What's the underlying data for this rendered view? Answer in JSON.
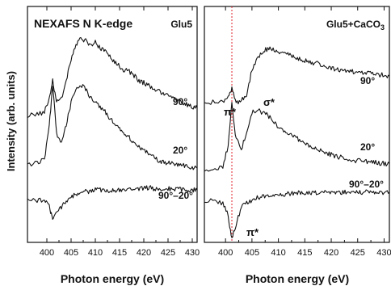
{
  "figure": {
    "ylabel": "Intensity (arb. units)"
  },
  "chart_data": [
    {
      "type": "line",
      "panel": "left",
      "title": "NEXAFS N K-edge",
      "tag": "Glu5",
      "xlabel": "Photon energy (eV)",
      "ylabel": "Intensity (arb. units)",
      "xlim": [
        396,
        431
      ],
      "xticks": [
        400,
        405,
        410,
        415,
        420,
        425,
        430
      ],
      "yticks_labeled": false,
      "series": [
        {
          "name": "90°",
          "x": [
            396,
            398,
            399.5,
            400.5,
            401.2,
            402,
            403,
            404,
            405,
            406,
            407,
            408,
            409,
            410,
            411,
            412,
            413,
            414,
            415,
            416,
            417,
            418,
            419,
            420,
            421,
            422,
            423,
            424,
            425,
            426,
            427,
            428,
            429,
            430,
            431
          ],
          "y": [
            1.05,
            1.07,
            1.1,
            1.28,
            1.55,
            1.25,
            1.3,
            1.55,
            1.85,
            2.05,
            2.15,
            2.12,
            2.05,
            2.1,
            2.02,
            1.98,
            1.9,
            1.82,
            1.75,
            1.7,
            1.68,
            1.62,
            1.55,
            1.52,
            1.48,
            1.44,
            1.4,
            1.36,
            1.33,
            1.3,
            1.27,
            1.24,
            1.21,
            1.18,
            1.16
          ]
        },
        {
          "name": "20°",
          "x": [
            396,
            398,
            399.5,
            400.5,
            401.2,
            402,
            403,
            404,
            405,
            406,
            407,
            408,
            409,
            410,
            411,
            412,
            413,
            414,
            415,
            416,
            417,
            418,
            419,
            420,
            421,
            422,
            423,
            424,
            425,
            426,
            427,
            428,
            429,
            430,
            431
          ],
          "y": [
            0.1,
            0.12,
            0.15,
            0.55,
            1.0,
            0.45,
            0.35,
            0.55,
            0.8,
            0.95,
            1.0,
            0.95,
            0.85,
            0.8,
            0.75,
            0.7,
            0.62,
            0.55,
            0.5,
            0.45,
            0.4,
            0.35,
            0.3,
            0.26,
            0.22,
            0.18,
            0.15,
            0.13,
            0.12,
            0.11,
            0.1,
            0.09,
            0.08,
            0.07,
            0.06
          ]
        },
        {
          "name": "90°–20°",
          "x": [
            396,
            398,
            399.5,
            400.5,
            401.2,
            402,
            403,
            404,
            405,
            406,
            407,
            408,
            409,
            410,
            411,
            412,
            413,
            414,
            415,
            416,
            417,
            418,
            419,
            420,
            421,
            422,
            423,
            424,
            425,
            426,
            427,
            428,
            429,
            430,
            431
          ],
          "y": [
            -0.95,
            -0.95,
            -0.95,
            -1.0,
            -1.1,
            -1.05,
            -1.0,
            -0.95,
            -0.92,
            -0.9,
            -0.9,
            -0.88,
            -0.88,
            -0.87,
            -0.87,
            -0.88,
            -0.88,
            -0.87,
            -0.87,
            -0.86,
            -0.86,
            -0.86,
            -0.86,
            -0.86,
            -0.85,
            -0.86,
            -0.86,
            -0.86,
            -0.86,
            -0.86,
            -0.86,
            -0.87,
            -0.87,
            -0.87,
            -0.87
          ]
        }
      ]
    },
    {
      "type": "line",
      "panel": "right",
      "title": "",
      "tag": "Glu5+CaCO",
      "tag_subscript": "3",
      "xlabel": "Photon energy (eV)",
      "xlim": [
        396,
        431
      ],
      "xticks": [
        400,
        405,
        410,
        415,
        420,
        425,
        430
      ],
      "reference_line_x": 401.2,
      "annotations": [
        "π*",
        "σ*",
        "π*"
      ],
      "series": [
        {
          "name": "90°",
          "x": [
            396,
            398,
            399.5,
            400.5,
            401.2,
            402,
            403,
            404,
            405,
            406,
            407,
            408,
            409,
            410,
            411,
            412,
            413,
            414,
            415,
            416,
            417,
            418,
            419,
            420,
            421,
            422,
            423,
            424,
            425,
            426,
            427,
            428,
            429,
            430,
            431
          ],
          "y": [
            1.0,
            1.02,
            1.05,
            1.08,
            1.25,
            1.0,
            1.05,
            1.15,
            1.55,
            1.75,
            1.85,
            1.9,
            1.88,
            1.85,
            1.82,
            1.8,
            1.76,
            1.72,
            1.7,
            1.68,
            1.66,
            1.64,
            1.6,
            1.58,
            1.56,
            1.55,
            1.53,
            1.52,
            1.51,
            1.5,
            1.49,
            1.48,
            1.47,
            1.46,
            1.45
          ]
        },
        {
          "name": "20°",
          "x": [
            396,
            398,
            399.5,
            400.5,
            401.2,
            402,
            403,
            404,
            405,
            406,
            407,
            408,
            409,
            410,
            411,
            412,
            413,
            414,
            415,
            416,
            417,
            418,
            419,
            420,
            421,
            422,
            423,
            424,
            425,
            426,
            427,
            428,
            429,
            430,
            431
          ],
          "y": [
            -0.1,
            -0.08,
            -0.05,
            0.3,
            1.0,
            0.4,
            0.25,
            0.5,
            0.85,
            0.9,
            0.85,
            0.8,
            0.7,
            0.62,
            0.55,
            0.5,
            0.45,
            0.4,
            0.35,
            0.3,
            0.26,
            0.22,
            0.18,
            0.15,
            0.12,
            0.1,
            0.08,
            0.06,
            0.05,
            0.04,
            0.03,
            0.02,
            0.01,
            0.0,
            0.0
          ]
        },
        {
          "name": "90°–20°",
          "x": [
            396,
            398,
            399.5,
            400.5,
            401.2,
            402,
            403,
            404,
            405,
            406,
            407,
            408,
            409,
            410,
            411,
            412,
            413,
            414,
            415,
            416,
            417,
            418,
            419,
            420,
            421,
            422,
            423,
            424,
            425,
            426,
            427,
            428,
            429,
            430,
            431
          ],
          "y": [
            -1.0,
            -1.0,
            -1.05,
            -1.35,
            -1.9,
            -1.55,
            -1.15,
            -1.05,
            -1.0,
            -0.92,
            -0.9,
            -0.88,
            -0.86,
            -0.85,
            -0.84,
            -0.83,
            -0.83,
            -0.82,
            -0.82,
            -0.82,
            -0.81,
            -0.81,
            -0.81,
            -0.81,
            -0.8,
            -0.8,
            -0.8,
            -0.8,
            -0.8,
            -0.8,
            -0.8,
            -0.8,
            -0.8,
            -0.8,
            -0.8
          ]
        }
      ]
    }
  ]
}
